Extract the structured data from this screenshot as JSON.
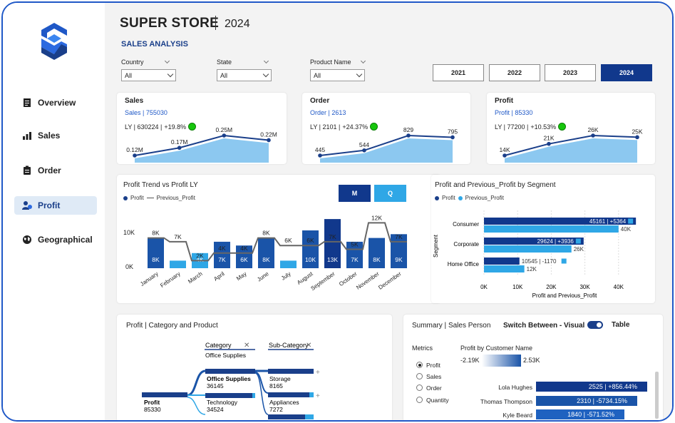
{
  "header": {
    "title": "SUPER STORE",
    "year": "2024",
    "subtitle": "SALES ANALYSIS"
  },
  "nav": [
    {
      "label": "Overview",
      "icon": "document-icon"
    },
    {
      "label": "Sales",
      "icon": "chart-icon"
    },
    {
      "label": "Order",
      "icon": "clipboard-icon"
    },
    {
      "label": "Profit",
      "icon": "user-money-icon",
      "active": true
    },
    {
      "label": "Geographical",
      "icon": "globe-icon"
    }
  ],
  "filters": [
    {
      "label": "Country",
      "value": "All"
    },
    {
      "label": "State",
      "value": "All"
    },
    {
      "label": "Product Name",
      "value": "All"
    }
  ],
  "years": [
    "2021",
    "2022",
    "2023",
    "2024"
  ],
  "active_year": "2024",
  "kpis": [
    {
      "title": "Sales",
      "value": "Sales | 755030",
      "ly": "LY | 630224 |",
      "change": "+19.8%",
      "points": [
        0.12,
        0.17,
        0.25,
        0.22
      ],
      "labels": [
        "0.12M",
        "0.17M",
        "0.25M",
        "0.22M"
      ]
    },
    {
      "title": "Order",
      "value": "Order | 2613",
      "ly": "LY | 2101 |",
      "change": "+24.37%",
      "points": [
        445,
        544,
        829,
        795
      ],
      "labels": [
        "445",
        "544",
        "829",
        "795"
      ]
    },
    {
      "title": "Profit",
      "value": "Profit | 85330",
      "ly": "LY | 77200 |",
      "change": "+10.53%",
      "points": [
        14,
        21,
        26,
        25
      ],
      "labels": [
        "14K",
        "21K",
        "26K",
        "25K"
      ]
    }
  ],
  "trend": {
    "title": "Profit Trend vs Profit LY",
    "legend": [
      "Profit",
      "Previous_Profit"
    ],
    "buttons": [
      "M",
      "Q"
    ],
    "y_ticks": [
      "10K",
      "0K"
    ],
    "colors": {
      "dark": "#1a54a8",
      "light": "#2fa7e6",
      "selected": "#11388c"
    }
  },
  "segment": {
    "title": "Profit and Previous_Profit by Segment",
    "legend": [
      "Profit",
      "Previous_Profit"
    ],
    "axis_label": "Segment",
    "x_title": "Profit and Previous_Profit",
    "x_ticks": [
      "0K",
      "10K",
      "20K",
      "30K",
      "40K"
    ]
  },
  "decomp": {
    "title": "Profit | Category and Product",
    "level1": "Category",
    "level1_filter": "Office Supplies",
    "level2": "Sub-Category",
    "root": {
      "label": "Profit",
      "value": "85330"
    },
    "nodes": [
      {
        "label": "Office Supplies",
        "value": "36145"
      },
      {
        "label": "Technology",
        "value": "34524"
      }
    ],
    "leaves": [
      {
        "label": "Storage",
        "value": "8165"
      },
      {
        "label": "Appliances",
        "value": "7272"
      }
    ]
  },
  "summary": {
    "title": "Summary | Sales Person",
    "switch_label": "Switch Between - Visual",
    "switch_right": "Table",
    "metrics_label": "Metrics",
    "metrics": [
      "Profit",
      "Sales",
      "Order",
      "Quantity"
    ],
    "selected_metric": "Profit",
    "customer_title": "Profit by Customer Name",
    "range_min": "-2.19K",
    "range_max": "2.53K",
    "people": [
      {
        "name": "Lola Hughes",
        "value": "2525 | +856.44%"
      },
      {
        "name": "Thomas Thompson",
        "value": "2310 | -5734.15%"
      },
      {
        "name": "Kyle Beard",
        "value": "1840 | -571.52%"
      }
    ]
  },
  "chart_data": [
    {
      "type": "bar",
      "title": "Profit Trend vs Profit LY",
      "categories": [
        "January",
        "February",
        "March",
        "April",
        "May",
        "June",
        "July",
        "August",
        "September",
        "October",
        "November",
        "December"
      ],
      "series": [
        {
          "name": "Profit",
          "values": [
            8,
            2,
            4,
            7,
            6,
            8,
            2,
            10,
            13,
            7,
            8,
            9
          ],
          "labels": [
            "8K",
            "",
            "4K",
            "7K",
            "6K",
            "8K",
            "",
            "10K",
            "13K",
            "7K",
            "8K",
            "9K"
          ]
        },
        {
          "name": "Previous_Profit",
          "values": [
            8,
            7,
            2,
            4,
            4,
            8,
            6,
            6,
            7,
            5,
            12,
            7
          ],
          "labels": [
            "8K",
            "7K",
            "2K",
            "4K",
            "4K",
            "8K",
            "6K",
            "6K",
            "7K",
            "5K",
            "12K",
            "7K"
          ]
        }
      ],
      "ylim": [
        0,
        15
      ]
    },
    {
      "type": "bar",
      "title": "Profit and Previous_Profit by Segment",
      "categories": [
        "Consumer",
        "Corporate",
        "Home Office"
      ],
      "series": [
        {
          "name": "Profit",
          "values": [
            45161,
            29624,
            10545
          ],
          "labels": [
            "45161 | +5364",
            "29624 | +3936",
            "10545 | -1170"
          ]
        },
        {
          "name": "Previous_Profit",
          "values": [
            40,
            26,
            12
          ],
          "labels": [
            "40K",
            "26K",
            "12K"
          ]
        }
      ],
      "xlabel": "Profit and Previous_Profit",
      "ylabel": "Segment",
      "xlim": [
        0,
        45
      ]
    }
  ]
}
